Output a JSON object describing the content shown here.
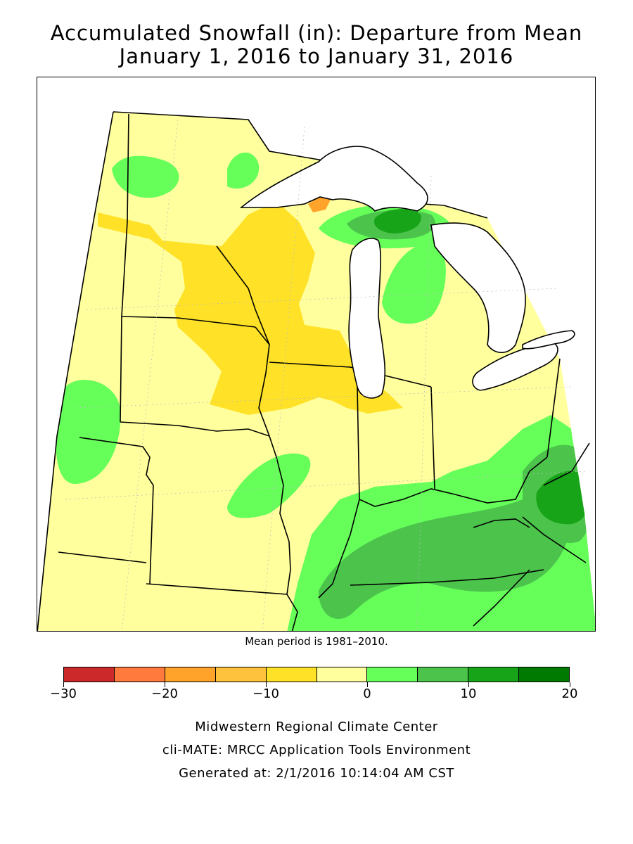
{
  "title": {
    "line1": "Accumulated Snowfall (in): Departure from Mean",
    "line2": "January 1, 2016 to January 31, 2016"
  },
  "map": {
    "region": "Midwestern United States",
    "note": "Mean period is 1981–2010."
  },
  "legend": {
    "unit": "in",
    "ticks": [
      "−30",
      "−20",
      "−10",
      "0",
      "10",
      "20"
    ],
    "bins": [
      {
        "from": -30,
        "to": -25,
        "color": "#cc2a2a"
      },
      {
        "from": -25,
        "to": -20,
        "color": "#ff7a3c"
      },
      {
        "from": -20,
        "to": -15,
        "color": "#ffa32a"
      },
      {
        "from": -15,
        "to": -10,
        "color": "#ffc23c"
      },
      {
        "from": -10,
        "to": -5,
        "color": "#ffe228"
      },
      {
        "from": -5,
        "to": 0,
        "color": "#ffff9e"
      },
      {
        "from": 0,
        "to": 5,
        "color": "#66ff5a"
      },
      {
        "from": 5,
        "to": 10,
        "color": "#4cc44c"
      },
      {
        "from": 10,
        "to": 15,
        "color": "#18a418"
      },
      {
        "from": 15,
        "to": 20,
        "color": "#007a00"
      }
    ]
  },
  "footer": {
    "line1": "Midwestern Regional Climate Center",
    "line2": "cli-MATE: MRCC Application Tools Environment",
    "line3": "Generated at: 2/1/2016 10:14:04 AM CST"
  }
}
